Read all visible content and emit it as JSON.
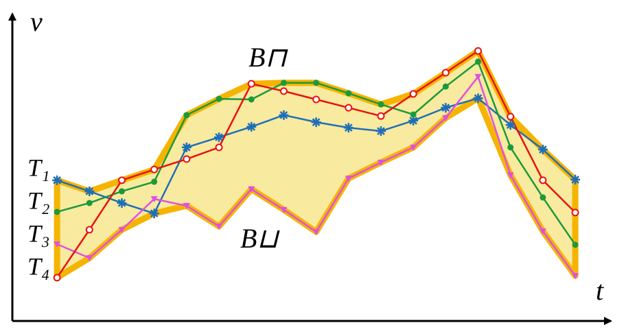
{
  "chart_data": {
    "type": "line",
    "y_label": "v",
    "x_label": "t",
    "annotations": [
      "B⊓",
      "B⊔"
    ],
    "x": [
      0,
      1,
      2,
      3,
      4,
      5,
      6,
      7,
      8,
      9,
      10,
      11,
      12,
      13,
      14,
      15,
      16
    ],
    "xlim": [
      -1.38,
      17.1
    ],
    "ylim": [
      0,
      100
    ],
    "band_color": "#f8ea9e",
    "band_edge_color": "#f5b400",
    "series": [
      {
        "name": "T₁",
        "color": "#1f6fb8",
        "marker": "asterisk",
        "values": [
          45.8,
          42.2,
          38.4,
          35.0,
          56.5,
          59.8,
          63.2,
          67.0,
          64.7,
          62.9,
          61.8,
          65.2,
          69.4,
          72.5,
          63.8,
          55.8,
          46.0
        ]
      },
      {
        "name": "T₂",
        "color": "#1a9a3a",
        "marker": "dot",
        "values": [
          35.5,
          38.4,
          42.2,
          45.3,
          67.0,
          72.3,
          72.1,
          77.5,
          77.5,
          74.1,
          70.5,
          67.2,
          76.3,
          84.4,
          56.5,
          40.2,
          24.8
        ]
      },
      {
        "name": "T₃",
        "color": "#e050e0",
        "marker": "triangle",
        "values": [
          25.0,
          20.5,
          29.7,
          39.7,
          37.5,
          30.8,
          42.9,
          36.2,
          29.0,
          46.4,
          51.6,
          56.5,
          66.1,
          79.5,
          47.5,
          29.2,
          14.7
        ]
      },
      {
        "name": "T₄",
        "color": "#e81010",
        "marker": "circle",
        "values": [
          14.1,
          29.7,
          45.8,
          49.3,
          52.7,
          56.5,
          77.2,
          74.8,
          72.1,
          69.4,
          66.7,
          73.9,
          80.8,
          87.9,
          66.5,
          45.8,
          35.3
        ]
      }
    ]
  }
}
